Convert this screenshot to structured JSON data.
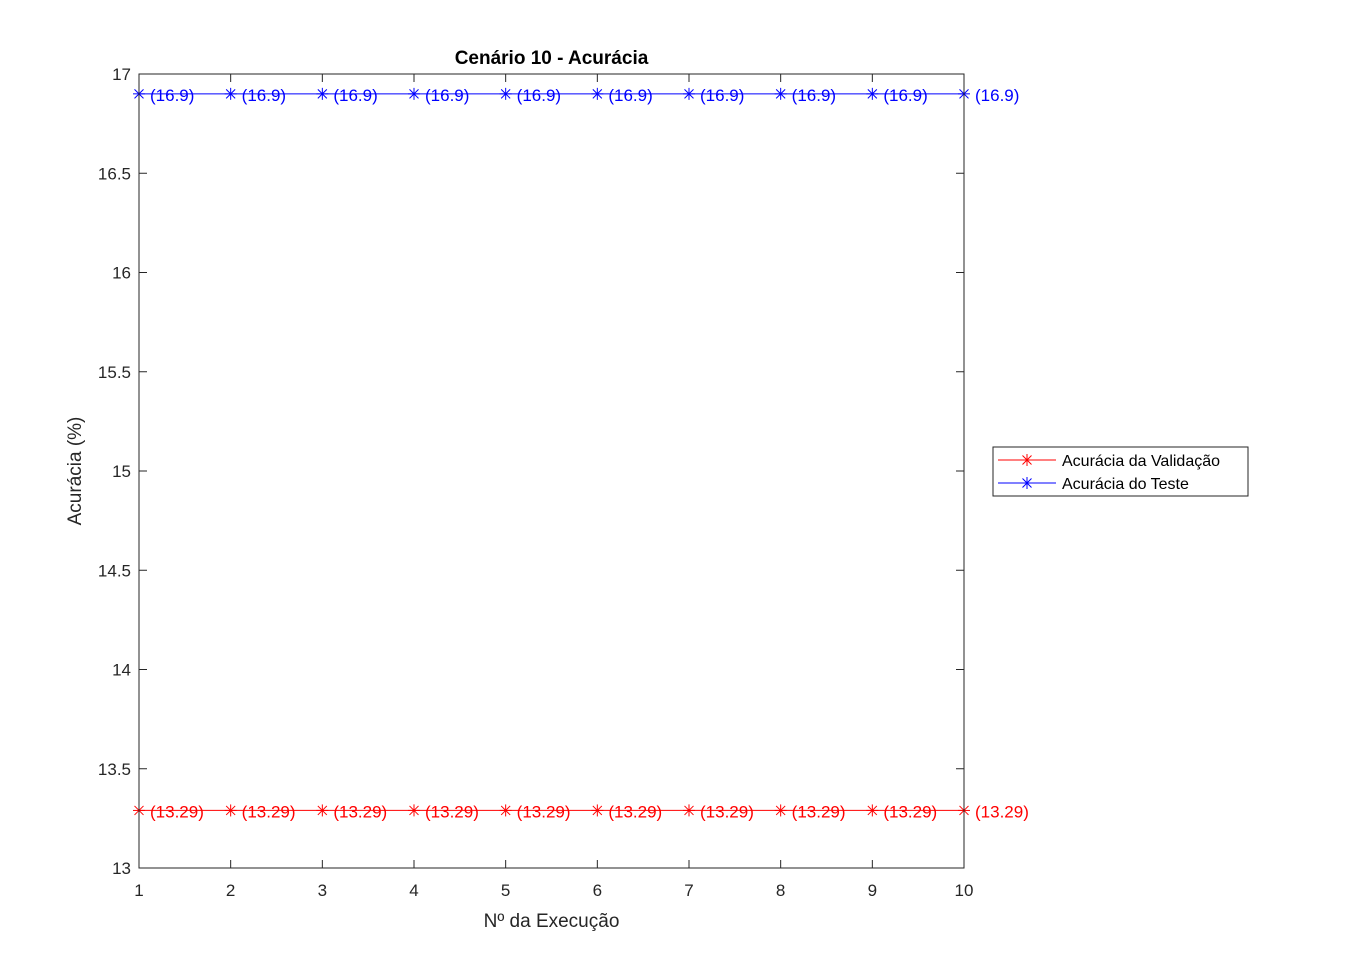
{
  "chart_data": {
    "type": "line",
    "title": "Cenário 10 - Acurácia",
    "xlabel": "Nº da Execução",
    "ylabel": "Acurácia (%)",
    "xlim": [
      1,
      10
    ],
    "ylim": [
      13,
      17
    ],
    "x_ticks": [
      1,
      2,
      3,
      4,
      5,
      6,
      7,
      8,
      9,
      10
    ],
    "y_ticks": [
      13,
      13.5,
      14,
      14.5,
      15,
      15.5,
      16,
      16.5,
      17
    ],
    "grid": false,
    "legend_position": "right",
    "x": [
      1,
      2,
      3,
      4,
      5,
      6,
      7,
      8,
      9,
      10
    ],
    "series": [
      {
        "name": "Acurácia da Validação",
        "color": "#ff0000",
        "marker": "asterisk",
        "values": [
          13.29,
          13.29,
          13.29,
          13.29,
          13.29,
          13.29,
          13.29,
          13.29,
          13.29,
          13.29
        ],
        "labels": [
          "(13.29)",
          "(13.29)",
          "(13.29)",
          "(13.29)",
          "(13.29)",
          "(13.29)",
          "(13.29)",
          "(13.29)",
          "(13.29)",
          "(13.29)"
        ]
      },
      {
        "name": "Acurácia do Teste",
        "color": "#0000ff",
        "marker": "asterisk",
        "values": [
          16.9,
          16.9,
          16.9,
          16.9,
          16.9,
          16.9,
          16.9,
          16.9,
          16.9,
          16.9
        ],
        "labels": [
          "(16.9)",
          "(16.9)",
          "(16.9)",
          "(16.9)",
          "(16.9)",
          "(16.9)",
          "(16.9)",
          "(16.9)",
          "(16.9)",
          "(16.9)"
        ]
      }
    ]
  }
}
